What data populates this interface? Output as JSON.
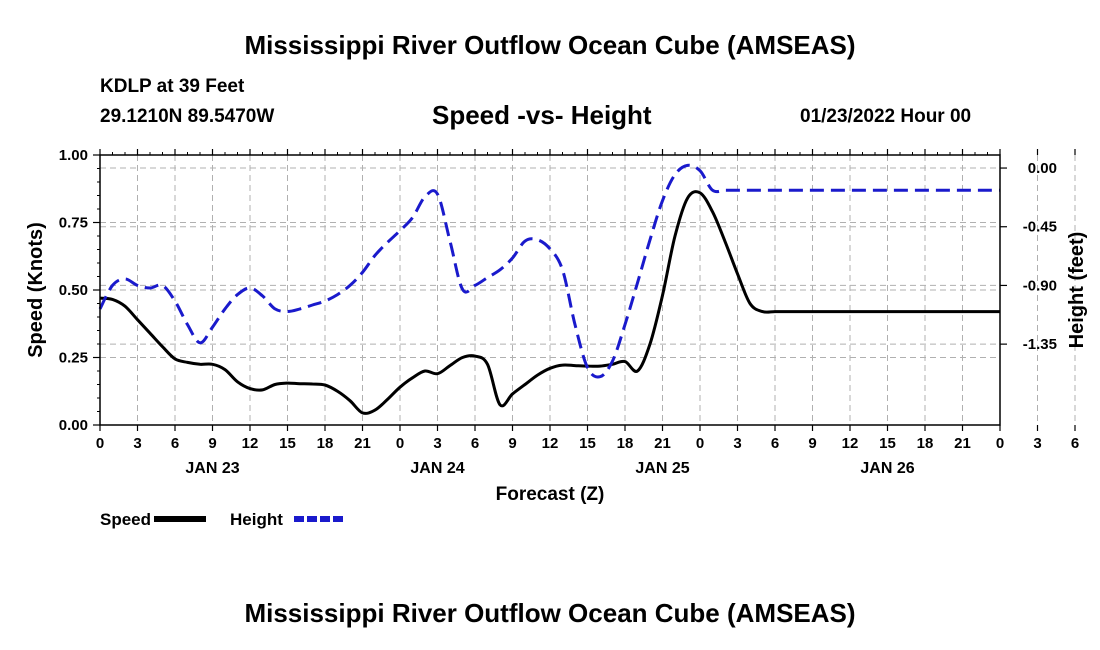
{
  "page": {
    "title": "Mississippi River Outflow Ocean Cube (AMSEAS)",
    "title_repeat": "Mississippi River Outflow Ocean Cube (AMSEAS)",
    "station": "KDLP at 39 Feet",
    "coords": "29.1210N  89.5470W",
    "chart_title": "Speed -vs- Height",
    "datetime": "01/23/2022 Hour 00"
  },
  "chart_data": {
    "type": "line",
    "title": "Speed -vs- Height",
    "xlabel": "Forecast (Z)",
    "ylabel": "Speed (Knots)",
    "y2label": "Height (feet)",
    "x_range": [
      0,
      72
    ],
    "ylim": [
      0,
      1.0
    ],
    "y2lim": [
      -1.97,
      0.1
    ],
    "y_ticks": [
      "0.00",
      "0.25",
      "0.50",
      "0.75",
      "1.00"
    ],
    "y_tick_values": [
      0,
      0.25,
      0.5,
      0.75,
      1.0
    ],
    "y2_ticks": [
      "0.00",
      "-0.45",
      "-0.90",
      "-1.35"
    ],
    "y2_tick_values": [
      0.0,
      -0.45,
      -0.9,
      -1.35
    ],
    "x_tick_labels": [
      "0",
      "3",
      "6",
      "9",
      "12",
      "15",
      "18",
      "21",
      "0",
      "3",
      "6",
      "9",
      "12",
      "15",
      "18",
      "21",
      "0",
      "3",
      "6",
      "9",
      "12",
      "15",
      "18",
      "21",
      "0",
      "3",
      "6",
      "9",
      "12",
      "15",
      "18",
      "21",
      "0"
    ],
    "day_labels": [
      {
        "label": "JAN 23",
        "x": 9
      },
      {
        "label": "JAN 24",
        "x": 27
      },
      {
        "label": "JAN 25",
        "x": 45
      },
      {
        "label": "JAN 26",
        "x": 63
      }
    ],
    "grid": true,
    "series": [
      {
        "name": "Speed",
        "axis": "left",
        "color": "#000000",
        "style": "solid",
        "x": [
          0,
          1,
          2,
          3,
          4,
          5,
          6,
          7,
          8,
          9,
          10,
          11,
          12,
          13,
          14,
          15,
          16,
          17,
          18,
          19,
          20,
          21,
          22,
          23,
          24,
          25,
          26,
          27,
          28,
          29,
          30,
          31,
          32,
          33,
          34,
          35,
          36,
          37,
          38,
          39,
          40,
          41,
          42,
          43,
          44,
          45,
          46,
          47,
          48,
          49,
          50,
          51,
          52,
          53,
          54,
          55,
          56,
          57,
          58,
          59,
          60,
          61,
          62,
          63,
          64,
          65,
          66,
          67,
          68,
          69,
          70,
          71,
          72
        ],
        "values": [
          0.47,
          0.465,
          0.44,
          0.39,
          0.34,
          0.29,
          0.245,
          0.232,
          0.225,
          0.225,
          0.205,
          0.16,
          0.135,
          0.13,
          0.15,
          0.155,
          0.153,
          0.152,
          0.148,
          0.125,
          0.09,
          0.045,
          0.055,
          0.095,
          0.14,
          0.175,
          0.2,
          0.19,
          0.22,
          0.25,
          0.255,
          0.225,
          0.075,
          0.115,
          0.15,
          0.185,
          0.21,
          0.222,
          0.22,
          0.218,
          0.218,
          0.225,
          0.235,
          0.2,
          0.3,
          0.48,
          0.7,
          0.84,
          0.86,
          0.79,
          0.68,
          0.56,
          0.45,
          0.42,
          0.42,
          0.42,
          0.42,
          0.42,
          0.42,
          0.42,
          0.42,
          0.42,
          0.42,
          0.42,
          0.42,
          0.42,
          0.42,
          0.42,
          0.42,
          0.42,
          0.42,
          0.42,
          0.42
        ]
      },
      {
        "name": "Height",
        "axis": "right",
        "color": "#1a1acc",
        "style": "dashed",
        "x": [
          0,
          1,
          2,
          3,
          4,
          5,
          6,
          7,
          8,
          9,
          10,
          11,
          12,
          13,
          14,
          15,
          16,
          17,
          18,
          19,
          20,
          21,
          22,
          23,
          24,
          25,
          26,
          27,
          28,
          29,
          30,
          31,
          32,
          33,
          34,
          35,
          36,
          37,
          38,
          39,
          40,
          41,
          42,
          43,
          44,
          45,
          46,
          47,
          48,
          49,
          50,
          51,
          52,
          53,
          54,
          55,
          56,
          57,
          58,
          59,
          60,
          61,
          62,
          63,
          64,
          65,
          66,
          67,
          68,
          69,
          70,
          71,
          72
        ],
        "values": [
          -1.08,
          -0.9,
          -0.85,
          -0.9,
          -0.92,
          -0.9,
          -1.02,
          -1.2,
          -1.34,
          -1.22,
          -1.08,
          -0.97,
          -0.92,
          -0.98,
          -1.08,
          -1.1,
          -1.08,
          -1.05,
          -1.02,
          -0.97,
          -0.9,
          -0.8,
          -0.67,
          -0.57,
          -0.48,
          -0.38,
          -0.22,
          -0.2,
          -0.56,
          -0.93,
          -0.9,
          -0.84,
          -0.78,
          -0.69,
          -0.56,
          -0.55,
          -0.62,
          -0.78,
          -1.2,
          -1.53,
          -1.6,
          -1.48,
          -1.2,
          -0.88,
          -0.55,
          -0.25,
          -0.05,
          0.02,
          -0.02,
          -0.17,
          -0.17,
          -0.17,
          -0.17,
          -0.17,
          -0.17,
          -0.17,
          -0.17,
          -0.17,
          -0.17,
          -0.17,
          -0.17,
          -0.17,
          -0.17,
          -0.17,
          -0.17,
          -0.17,
          -0.17,
          -0.17,
          -0.17,
          -0.17,
          -0.17,
          -0.17,
          -0.17
        ]
      }
    ],
    "legend": [
      {
        "label": "Speed",
        "color": "#000000",
        "style": "solid"
      },
      {
        "label": "Height",
        "color": "#1a1acc",
        "style": "dashed"
      }
    ]
  }
}
